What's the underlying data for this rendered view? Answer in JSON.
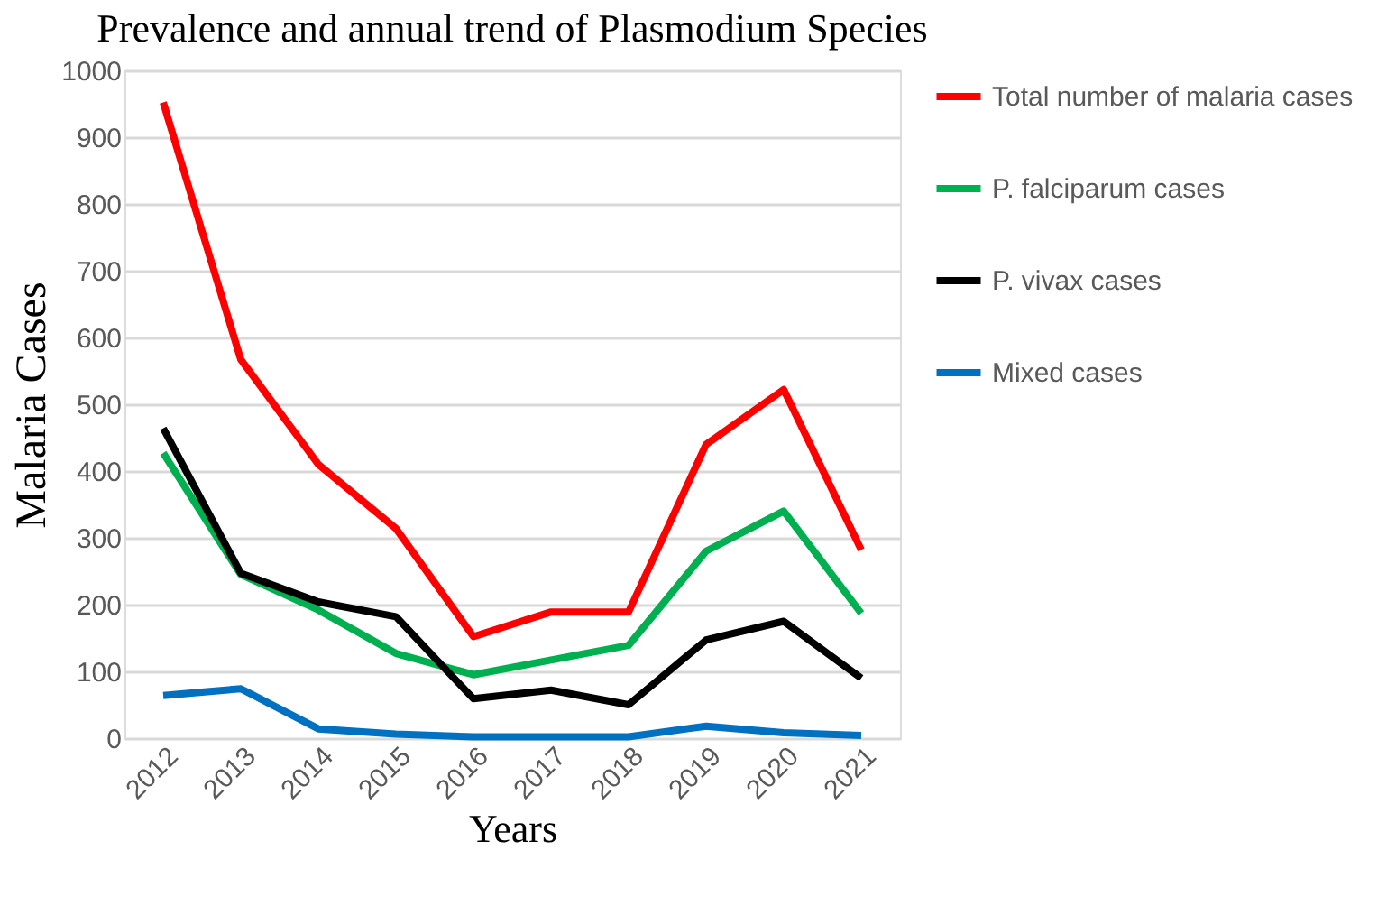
{
  "chart_data": {
    "type": "line",
    "title": "Prevalence and annual trend of Plasmodium Species",
    "xlabel": "Years",
    "ylabel": "Malaria Cases",
    "categories": [
      "2012",
      "2013",
      "2014",
      "2015",
      "2016",
      "2017",
      "2018",
      "2019",
      "2020",
      "2021"
    ],
    "series": [
      {
        "name": "Total number of malaria cases",
        "color": "#ff0000",
        "values": [
          952,
          567,
          410,
          314,
          152,
          189,
          189,
          440,
          522,
          282
        ]
      },
      {
        "name": "P. falciparum cases",
        "color": "#00b050",
        "values": [
          427,
          245,
          192,
          127,
          95,
          117,
          139,
          280,
          340,
          187
        ]
      },
      {
        "name": "P. vivax cases",
        "color": "#000000",
        "values": [
          464,
          247,
          204,
          182,
          59,
          72,
          50,
          147,
          175,
          90
        ]
      },
      {
        "name": "Mixed cases",
        "color": "#0070c0",
        "values": [
          64,
          74,
          14,
          6,
          2,
          2,
          2,
          18,
          8,
          4
        ]
      }
    ],
    "ylim": [
      0,
      1000
    ],
    "yticks": [
      0,
      100,
      200,
      300,
      400,
      500,
      600,
      700,
      800,
      900,
      1000
    ],
    "grid": "y",
    "legend": "right",
    "marker": "none",
    "line_style": "solid"
  }
}
